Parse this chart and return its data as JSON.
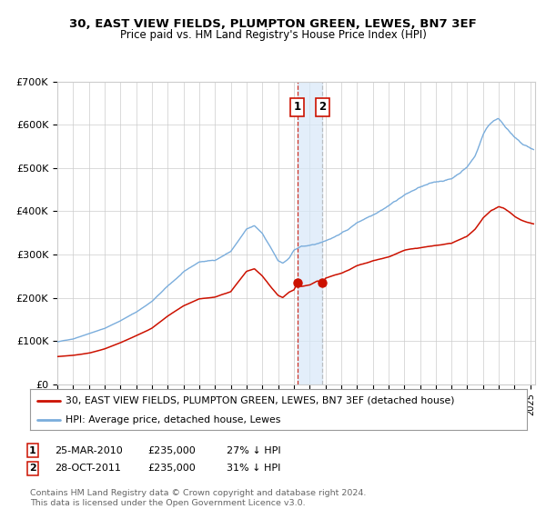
{
  "title": "30, EAST VIEW FIELDS, PLUMPTON GREEN, LEWES, BN7 3EF",
  "subtitle": "Price paid vs. HM Land Registry's House Price Index (HPI)",
  "legend_entries": [
    "30, EAST VIEW FIELDS, PLUMPTON GREEN, LEWES, BN7 3EF (detached house)",
    "HPI: Average price, detached house, Lewes"
  ],
  "transactions": [
    {
      "label": "1",
      "date": "25-MAR-2010",
      "price": 235000,
      "hpi_pct": "27% ↓ HPI"
    },
    {
      "label": "2",
      "date": "28-OCT-2011",
      "price": 235000,
      "hpi_pct": "31% ↓ HPI"
    }
  ],
  "transaction_dates_num": [
    2010.23,
    2011.82
  ],
  "transaction_prices": [
    235000,
    235000
  ],
  "hpi_color": "#7aaddc",
  "price_color": "#cc1100",
  "marker_color": "#cc1100",
  "vline1_color": "#cc1100",
  "vline2_color": "#aaaaaa",
  "shade_color": "#d8e8f8",
  "grid_color": "#cccccc",
  "bg_color": "#ffffff",
  "footer_text": "Contains HM Land Registry data © Crown copyright and database right 2024.\nThis data is licensed under the Open Government Licence v3.0.",
  "ylim": [
    0,
    700000
  ],
  "yticks": [
    0,
    100000,
    200000,
    300000,
    400000,
    500000,
    600000,
    700000
  ],
  "ytick_labels": [
    "£0",
    "£100K",
    "£200K",
    "£300K",
    "£400K",
    "£500K",
    "£600K",
    "£700K"
  ],
  "xlim_start": 1995.0,
  "xlim_end": 2025.3
}
